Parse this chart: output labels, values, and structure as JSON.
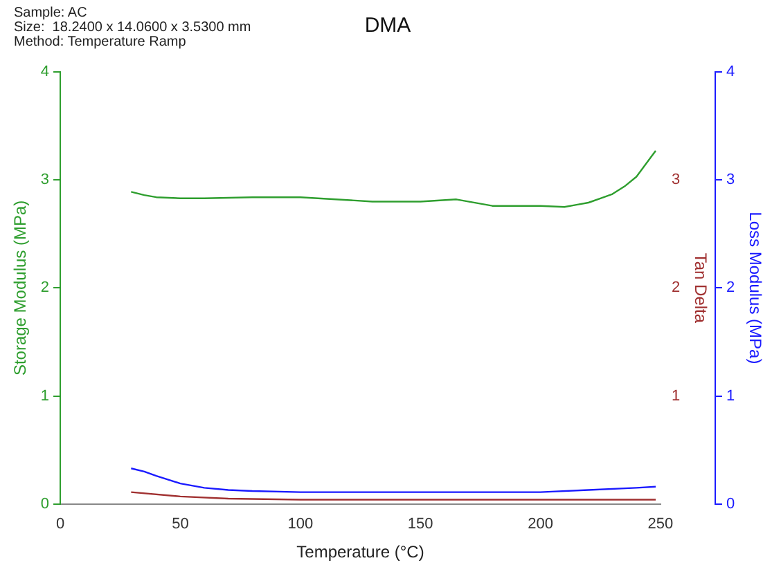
{
  "chart_data": {
    "type": "line",
    "title": "DMA",
    "annotations": [
      "Sample: AC",
      "Size:  18.2400 x 14.0600 x 3.5300 mm",
      "Method: Temperature Ramp"
    ],
    "xlabel": "Temperature (°C)",
    "ylabel": "Storage Modulus (MPa)",
    "y2label": "Loss Modulus (MPa)",
    "y3label": "Tan Delta",
    "xlim": [
      0,
      250
    ],
    "xticks": [
      0,
      50,
      100,
      150,
      200,
      250
    ],
    "ylim": [
      0,
      4
    ],
    "yticks": [
      0,
      1,
      2,
      3,
      4
    ],
    "y2lim": [
      0,
      4
    ],
    "y2ticks": [
      0,
      1,
      2,
      3,
      4
    ],
    "y3lim": [
      0,
      4
    ],
    "y3ticks": [
      1,
      2,
      3
    ],
    "grid": false,
    "legend": false,
    "marker": "none",
    "line_style": "solid",
    "series": [
      {
        "color": "#2e9e2e",
        "axis": "y",
        "x": [
          29.5,
          35,
          40,
          50,
          60,
          80,
          100,
          130,
          150,
          165,
          180,
          200,
          210,
          215,
          220,
          225,
          230,
          235,
          240,
          245,
          248
        ],
        "values": [
          2.89,
          2.86,
          2.84,
          2.83,
          2.83,
          2.84,
          2.84,
          2.8,
          2.8,
          2.82,
          2.76,
          2.76,
          2.75,
          2.77,
          2.79,
          2.83,
          2.87,
          2.94,
          3.03,
          3.18,
          3.27
        ]
      },
      {
        "color": "#1a1aff",
        "axis": "y2",
        "x": [
          29.5,
          35,
          40,
          50,
          60,
          70,
          80,
          100,
          150,
          200,
          220,
          240,
          248
        ],
        "values": [
          0.33,
          0.3,
          0.26,
          0.19,
          0.15,
          0.13,
          0.12,
          0.11,
          0.11,
          0.11,
          0.13,
          0.15,
          0.16
        ]
      },
      {
        "color": "#a03030",
        "axis": "y3",
        "x": [
          29.5,
          50,
          70,
          100,
          150,
          200,
          248
        ],
        "values": [
          0.11,
          0.07,
          0.05,
          0.04,
          0.04,
          0.04,
          0.04
        ]
      }
    ]
  }
}
